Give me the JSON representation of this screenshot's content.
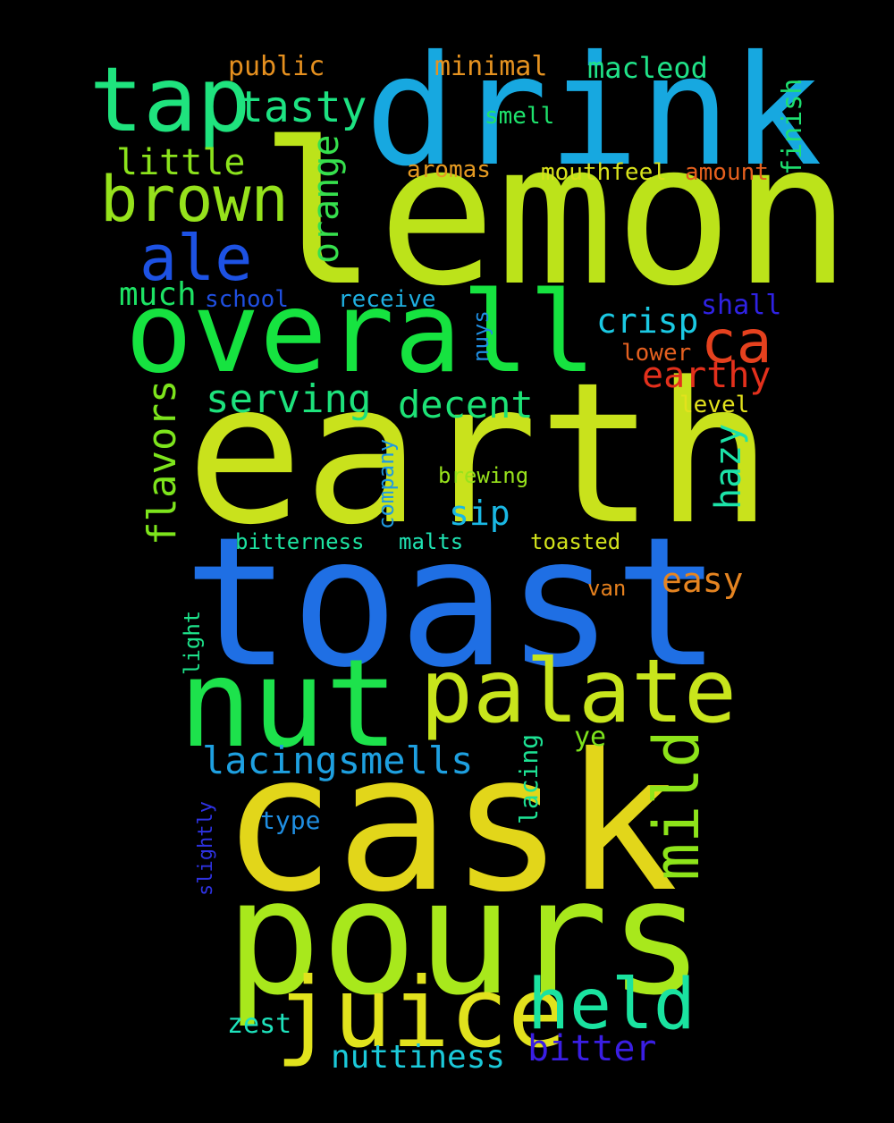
{
  "words": [
    {
      "text": "lemon",
      "color": "#bce31a"
    },
    {
      "text": "earth",
      "color": "#c9e21c"
    },
    {
      "text": "toast",
      "color": "#1f6fe4"
    },
    {
      "text": "drink",
      "color": "#17a8e0"
    },
    {
      "text": "cask",
      "color": "#e2d61a"
    },
    {
      "text": "pours",
      "color": "#a8e81c"
    },
    {
      "text": "overall",
      "color": "#16e340"
    },
    {
      "text": "nut",
      "color": "#1de24c"
    },
    {
      "text": "palate",
      "color": "#c8e51c"
    },
    {
      "text": "tap",
      "color": "#1fe37e"
    },
    {
      "text": "juice",
      "color": "#e1e21d"
    },
    {
      "text": "held",
      "color": "#1ae3a0"
    },
    {
      "text": "brown",
      "color": "#96e21c"
    },
    {
      "text": "ale",
      "color": "#1d52e4"
    },
    {
      "text": "ca",
      "color": "#e5411e"
    },
    {
      "text": "mild",
      "color": "#8de31a"
    },
    {
      "text": "tasty",
      "color": "#1de282"
    },
    {
      "text": "orange",
      "color": "#36e04d"
    },
    {
      "text": "lacingsmells",
      "color": "#1ea0e0"
    },
    {
      "text": "serving",
      "color": "#1de27c"
    },
    {
      "text": "decent",
      "color": "#1de276"
    },
    {
      "text": "flavors",
      "color": "#7de41c"
    },
    {
      "text": "little",
      "color": "#8be21c"
    },
    {
      "text": "crisp",
      "color": "#1bc9e3"
    },
    {
      "text": "earthy",
      "color": "#e3301c"
    },
    {
      "text": "hazy",
      "color": "#1ce3a8"
    },
    {
      "text": "much",
      "color": "#1de264"
    },
    {
      "text": "sip",
      "color": "#1ab7e3"
    },
    {
      "text": "easy",
      "color": "#e58421"
    },
    {
      "text": "bitter",
      "color": "#3a1ee4"
    },
    {
      "text": "nuttiness",
      "color": "#1bc9d9"
    },
    {
      "text": "macleod",
      "color": "#20e288"
    },
    {
      "text": "minimal",
      "color": "#e59220"
    },
    {
      "text": "public",
      "color": "#e5901f"
    },
    {
      "text": "finish",
      "color": "#1ee070"
    },
    {
      "text": "smell",
      "color": "#1ee26c"
    },
    {
      "text": "aromas",
      "color": "#e59a22"
    },
    {
      "text": "mouthfeel",
      "color": "#d8e21c"
    },
    {
      "text": "amount",
      "color": "#e5601e"
    },
    {
      "text": "school",
      "color": "#1f4fe0"
    },
    {
      "text": "receive",
      "color": "#1fb0e2"
    },
    {
      "text": "shall",
      "color": "#2f22e3"
    },
    {
      "text": "nuys",
      "color": "#1f8ee2"
    },
    {
      "text": "lower",
      "color": "#e56020"
    },
    {
      "text": "level",
      "color": "#e3e21c"
    },
    {
      "text": "company",
      "color": "#1f9ae0"
    },
    {
      "text": "brewing",
      "color": "#98e21c"
    },
    {
      "text": "bitterness",
      "color": "#1de2a0"
    },
    {
      "text": "malts",
      "color": "#1fe2b2"
    },
    {
      "text": "toasted",
      "color": "#d2e21c"
    },
    {
      "text": "van",
      "color": "#e5801e"
    },
    {
      "text": "light",
      "color": "#1de28a"
    },
    {
      "text": "lacing",
      "color": "#1de294"
    },
    {
      "text": "ye",
      "color": "#7ce21c"
    },
    {
      "text": "type",
      "color": "#1f8ee2"
    },
    {
      "text": "slightly",
      "color": "#2e32e2"
    },
    {
      "text": "zest",
      "color": "#1ee2bc"
    }
  ]
}
